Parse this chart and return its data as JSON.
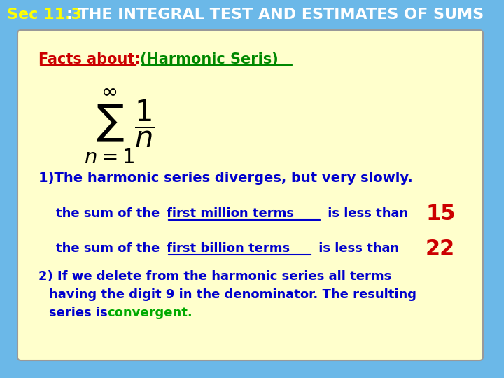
{
  "title_sec": "Sec 11.3",
  "title_rest": ": THE INTEGRAL TEST AND ESTIMATES OF SUMS",
  "header_bg": "#6bb8e8",
  "box_bg": "#ffffcc",
  "facts_label_red": "#cc0000",
  "facts_label_green": "#008800",
  "body_blue": "#0000cc",
  "red_number": "#cc0000",
  "convergent_green": "#00aa00",
  "line1a": "Facts about: ",
  "line1b": "(Harmonic Seris)",
  "line3": "1)The harmonic series diverges, but very slowly.",
  "line4a": "the sum of the ",
  "line4b": "first million terms",
  "line4c": " is less than ",
  "line4d": "15",
  "line5a": "the sum of the ",
  "line5b": "first billion terms",
  "line5c": " is less than ",
  "line5d": "22",
  "line6": "2) If we delete from the harmonic series all terms",
  "line7": "having the digit 9 in the denominator. The resulting",
  "line8": "series is ",
  "line8b": "convergent.",
  "figsize": [
    7.2,
    5.4
  ],
  "dpi": 100
}
